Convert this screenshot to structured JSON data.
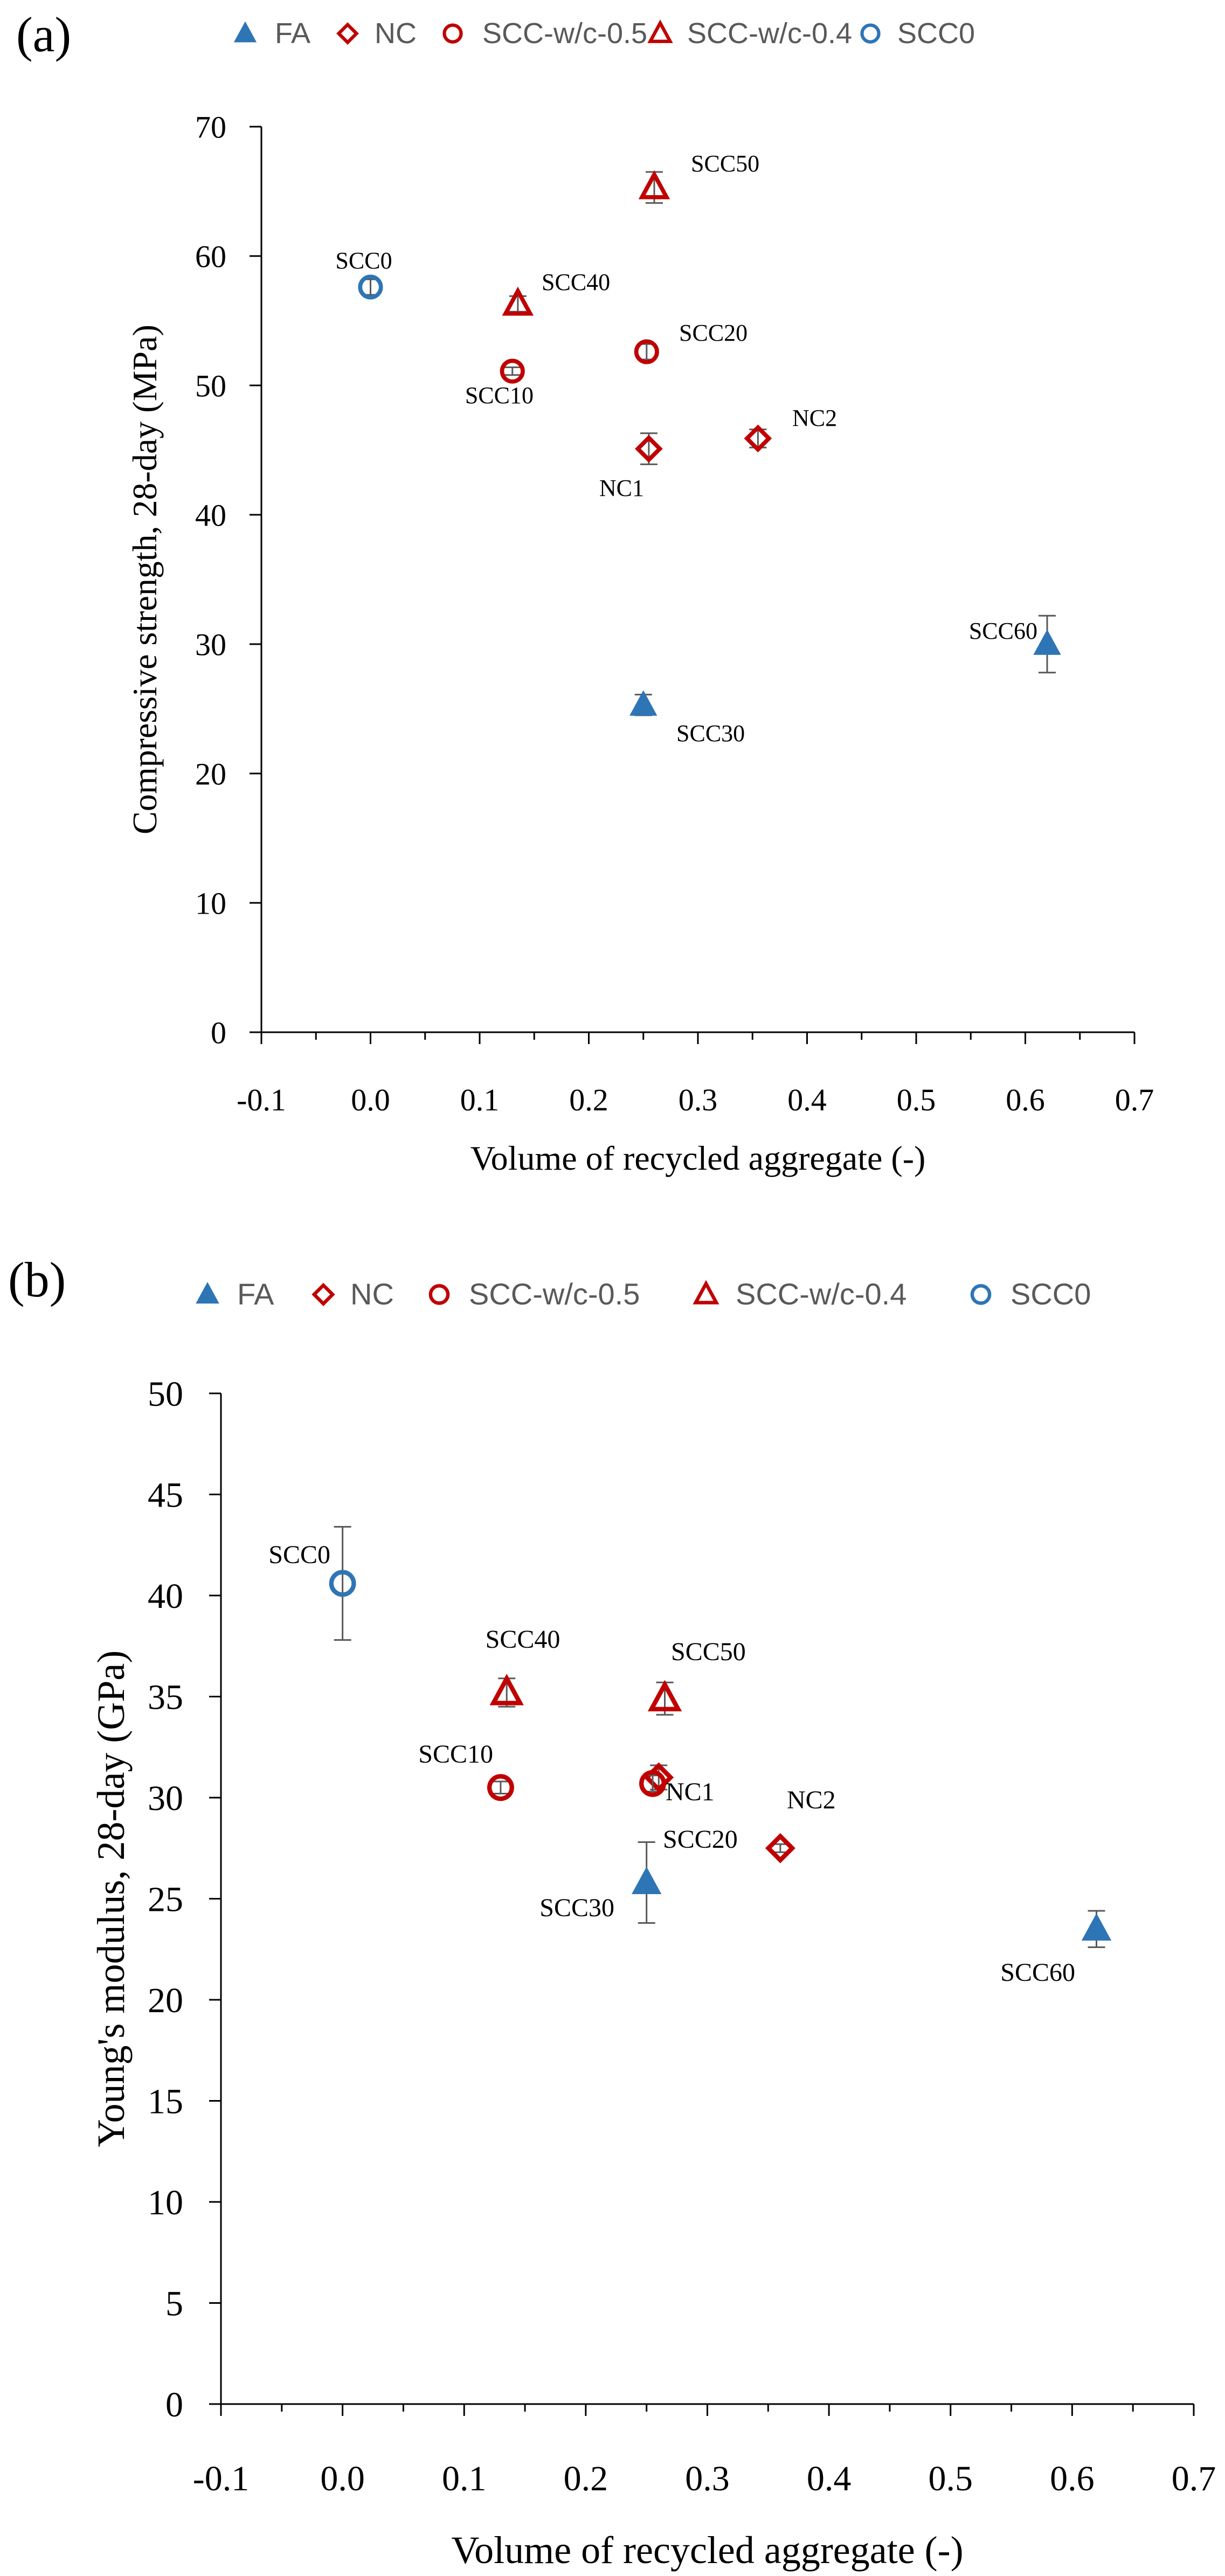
{
  "chart_data": [
    {
      "id": "a",
      "panel_label": "(a)",
      "type": "scatter",
      "xlabel": "Volume of recycled aggregate (-)",
      "ylabel": "Compressive strength, 28-day (MPa)",
      "xlim": [
        -0.1,
        0.7
      ],
      "ylim": [
        0,
        70
      ],
      "xticks": [
        "-0.1",
        "0.0",
        "0.1",
        "0.2",
        "0.3",
        "0.4",
        "0.5",
        "0.6",
        "0.7"
      ],
      "yticks": [
        "0",
        "10",
        "20",
        "30",
        "40",
        "50",
        "60",
        "70"
      ],
      "legend": [
        "FA",
        "NC",
        "SCC-w/c-0.5",
        "SCC-w/c-0.4",
        "SCC0"
      ],
      "series": [
        {
          "name": "FA",
          "marker": "triangle-filled",
          "color": "#2e75b6",
          "points": [
            {
              "label": "SCC30",
              "x": 0.25,
              "y": 25.3,
              "err": 0.8
            },
            {
              "label": "SCC60",
              "x": 0.62,
              "y": 30.0,
              "err": 2.2
            }
          ]
        },
        {
          "name": "NC",
          "marker": "diamond-open",
          "color": "#c00000",
          "points": [
            {
              "label": "NC1",
              "x": 0.255,
              "y": 45.1,
              "err": 1.2
            },
            {
              "label": "NC2",
              "x": 0.355,
              "y": 45.9,
              "err": 0.7
            }
          ]
        },
        {
          "name": "SCC-w/c-0.5",
          "marker": "circle-open",
          "color": "#c00000",
          "points": [
            {
              "label": "SCC10",
              "x": 0.13,
              "y": 51.1,
              "err": 0.3
            },
            {
              "label": "SCC20",
              "x": 0.253,
              "y": 52.6,
              "err": 0.6
            }
          ]
        },
        {
          "name": "SCC-w/c-0.4",
          "marker": "triangle-open",
          "color": "#c00000",
          "points": [
            {
              "label": "SCC40",
              "x": 0.135,
              "y": 56.3,
              "err": 0.6
            },
            {
              "label": "SCC50",
              "x": 0.26,
              "y": 65.3,
              "err": 1.2
            }
          ]
        },
        {
          "name": "SCC0",
          "marker": "circle-open",
          "color": "#2e75b6",
          "points": [
            {
              "label": "SCC0",
              "x": 0.0,
              "y": 57.6,
              "err": 0.6
            }
          ]
        }
      ]
    },
    {
      "id": "b",
      "panel_label": "(b)",
      "type": "scatter",
      "xlabel": "Volume of recycled aggregate (-)",
      "ylabel": "Young's modulus, 28-day (GPa)",
      "xlim": [
        -0.1,
        0.7
      ],
      "ylim": [
        0,
        50
      ],
      "xticks": [
        "-0.1",
        "0.0",
        "0.1",
        "0.2",
        "0.3",
        "0.4",
        "0.5",
        "0.6",
        "0.7"
      ],
      "yticks": [
        "0",
        "5",
        "10",
        "15",
        "20",
        "25",
        "30",
        "35",
        "40",
        "45",
        "50"
      ],
      "legend": [
        "FA",
        "NC",
        "SCC-w/c-0.5",
        "SCC-w/c-0.4",
        "SCC0"
      ],
      "series": [
        {
          "name": "FA",
          "marker": "triangle-filled",
          "color": "#2e75b6",
          "points": [
            {
              "label": "SCC30",
              "x": 0.25,
              "y": 25.8,
              "err": 2.0
            },
            {
              "label": "SCC60",
              "x": 0.62,
              "y": 23.5,
              "err": 0.9
            }
          ]
        },
        {
          "name": "NC",
          "marker": "diamond-open",
          "color": "#c00000",
          "points": [
            {
              "label": "NC1",
              "x": 0.26,
              "y": 31.0,
              "err": 0.6
            },
            {
              "label": "NC2",
              "x": 0.36,
              "y": 27.5,
              "err": 0.2
            }
          ]
        },
        {
          "name": "SCC-w/c-0.5",
          "marker": "circle-open",
          "color": "#c00000",
          "points": [
            {
              "label": "SCC10",
              "x": 0.13,
              "y": 30.5,
              "err": 0.3
            },
            {
              "label": "SCC20",
              "x": 0.255,
              "y": 30.7,
              "err": 0.4
            }
          ]
        },
        {
          "name": "SCC-w/c-0.4",
          "marker": "triangle-open",
          "color": "#c00000",
          "points": [
            {
              "label": "SCC40",
              "x": 0.135,
              "y": 35.2,
              "err": 0.7
            },
            {
              "label": "SCC50",
              "x": 0.265,
              "y": 34.9,
              "err": 0.8
            }
          ]
        },
        {
          "name": "SCC0",
          "marker": "circle-open",
          "color": "#2e75b6",
          "points": [
            {
              "label": "SCC0",
              "x": 0.0,
              "y": 40.6,
              "err": 2.8
            }
          ]
        }
      ]
    }
  ]
}
